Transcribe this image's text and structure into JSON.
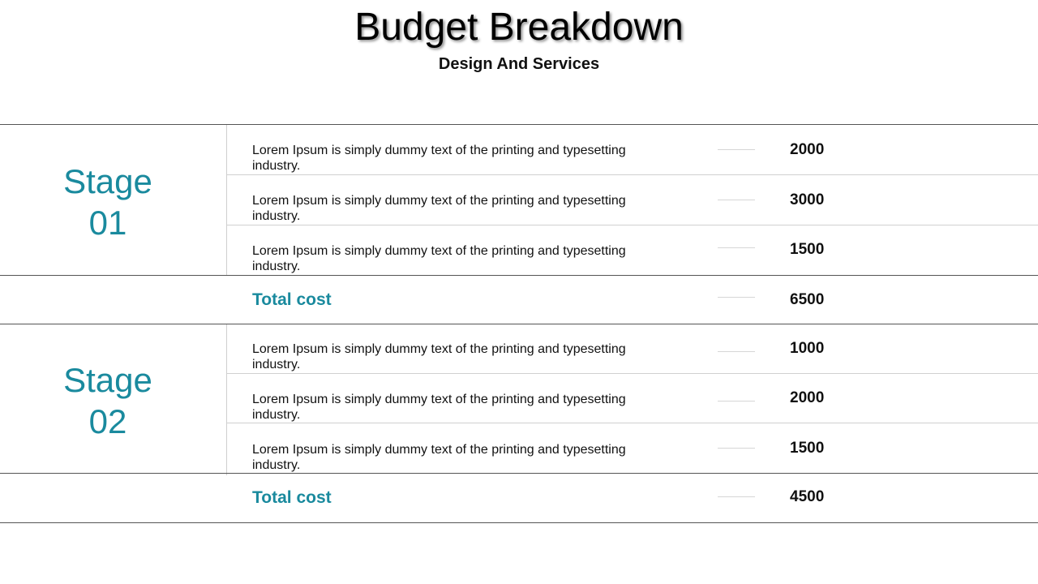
{
  "header": {
    "title": "Budget Breakdown",
    "subtitle": "Design And Services"
  },
  "colors": {
    "accent": "#1a8a9e",
    "text": "#111111"
  },
  "stages": [
    {
      "label_line1": "Stage",
      "label_line2": "01",
      "items": [
        {
          "description": "Lorem Ipsum is simply dummy text of the printing and typesetting industry.",
          "amount": "2000"
        },
        {
          "description": "Lorem Ipsum is simply dummy text of the printing and typesetting industry.",
          "amount": "3000"
        },
        {
          "description": "Lorem Ipsum is simply dummy text of the printing and typesetting industry.",
          "amount": "1500"
        }
      ],
      "total_label": "Total cost",
      "total_amount": "6500"
    },
    {
      "label_line1": "Stage",
      "label_line2": "02",
      "items": [
        {
          "description": "Lorem Ipsum is simply dummy text of the printing and typesetting industry.",
          "amount": "1000"
        },
        {
          "description": "Lorem Ipsum is simply dummy text of the printing and typesetting industry.",
          "amount": "2000"
        },
        {
          "description": "Lorem Ipsum is simply dummy text of the printing and typesetting industry.",
          "amount": "1500"
        }
      ],
      "total_label": "Total cost",
      "total_amount": "4500"
    }
  ]
}
